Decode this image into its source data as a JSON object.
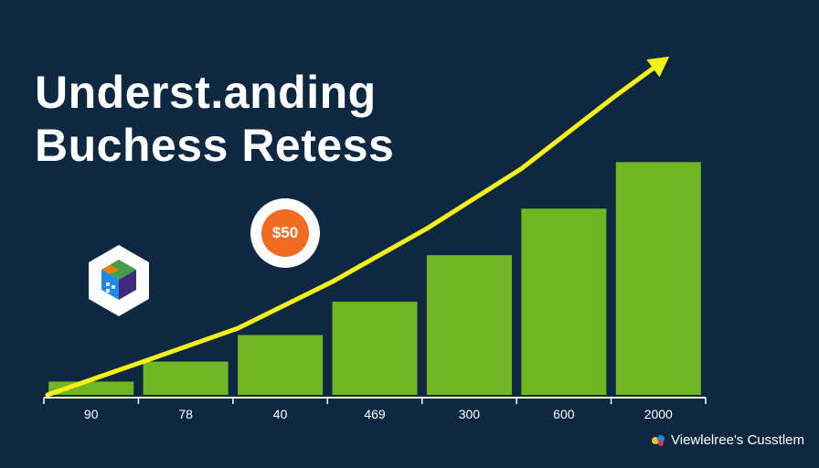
{
  "header": {
    "title_line1": "Underst.anding",
    "title_line2": "Buchess Retess"
  },
  "badge": {
    "price": "$50",
    "color": "#f26b21"
  },
  "icons": {
    "left": "cube-icon"
  },
  "watermark": {
    "text": "Viewlelree's Cusstlem"
  },
  "colors": {
    "background": "#0f2841",
    "bars": "#6fb524",
    "trend": "#f5ef1a",
    "axis": "#ffffff"
  },
  "chart_data": {
    "type": "bar",
    "categories": [
      "90",
      "78",
      "40",
      "469",
      "300",
      "600",
      "2000"
    ],
    "series": [
      {
        "values": [
          2,
          5,
          9,
          14,
          21,
          28,
          35
        ]
      }
    ],
    "trend_line": {
      "values": [
        0,
        5,
        10,
        17,
        25,
        34,
        45
      ],
      "arrow": true
    },
    "xlabel": "",
    "ylabel": "",
    "ylim": [
      0,
      47
    ],
    "grid": false,
    "legend": "none"
  }
}
